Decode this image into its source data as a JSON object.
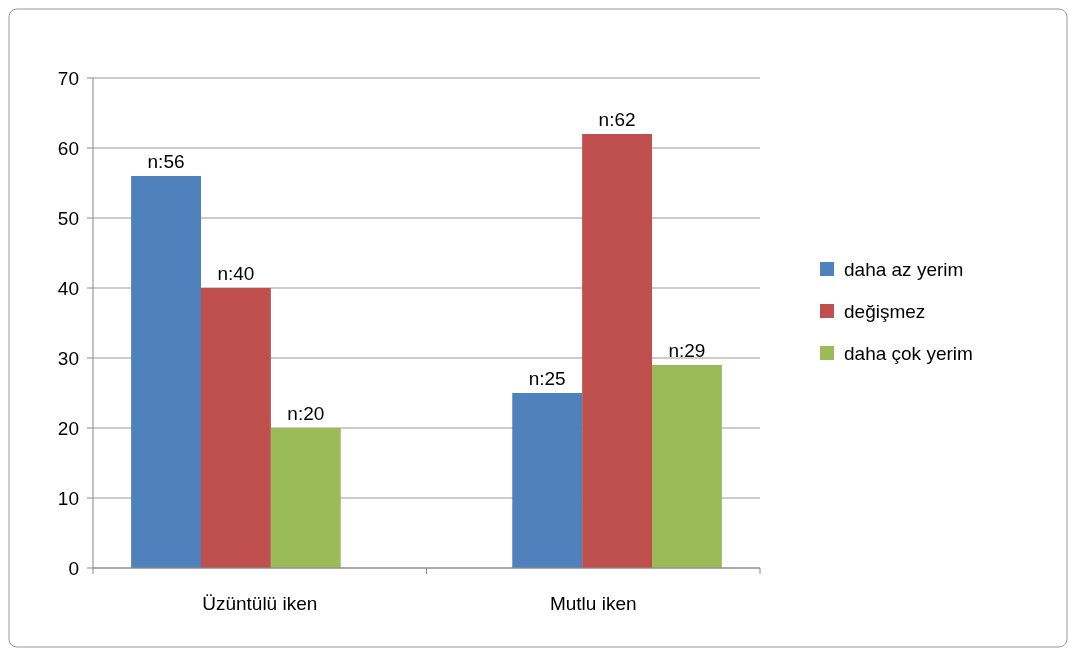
{
  "chart_data": {
    "type": "bar",
    "categories": [
      "Üzüntülü iken",
      "Mutlu iken"
    ],
    "series": [
      {
        "name": "daha az yerim",
        "color": "#4f81bd",
        "values": [
          56,
          25
        ],
        "value_labels": [
          "n:56",
          "n:25"
        ]
      },
      {
        "name": "değişmez",
        "color": "#c0504d",
        "values": [
          40,
          62
        ],
        "value_labels": [
          "n:40",
          "n:62"
        ]
      },
      {
        "name": "daha çok yerim",
        "color": "#9bbb59",
        "values": [
          20,
          29
        ],
        "value_labels": [
          "n:20",
          "n:29"
        ]
      }
    ],
    "ylim": [
      0,
      70
    ],
    "yticks": [
      0,
      10,
      20,
      30,
      40,
      50,
      60,
      70
    ],
    "grid": "y",
    "legend": "right"
  }
}
